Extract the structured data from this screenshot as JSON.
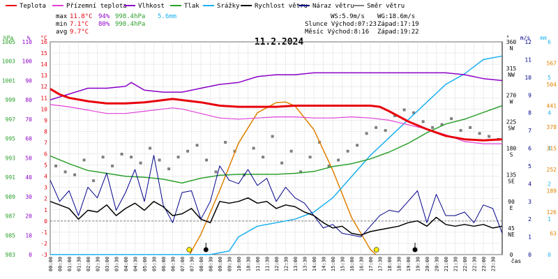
{
  "title": "11.2.2024",
  "legend": [
    {
      "key": "teplota",
      "label": "Teplota",
      "color": "#e8000b"
    },
    {
      "key": "prizemni",
      "label": "Přízemní teplota",
      "color": "#e040d8"
    },
    {
      "key": "vlhkost",
      "label": "Vlhkost",
      "color": "#8b00c8"
    },
    {
      "key": "tlak",
      "label": "Tlak",
      "color": "#2ca02c"
    },
    {
      "key": "srazky",
      "label": "Srážky",
      "color": "#1ab0f0"
    },
    {
      "key": "rychlost",
      "label": "Rychlost větru",
      "color": "#000000"
    },
    {
      "key": "naraz",
      "label": "Náraz větru",
      "color": "#00008b"
    },
    {
      "key": "smer",
      "label": "Směr větru",
      "color": "#7f7f7f"
    }
  ],
  "stats": {
    "max": {
      "label": "max",
      "temp": "11.8°C",
      "hum": "94%",
      "press": "998.4hPa",
      "rain": "5.6mm"
    },
    "min": {
      "label": "min",
      "temp": "7.1°C",
      "hum": "80%",
      "press": "990.4hPa"
    },
    "avg": {
      "label": "avg",
      "temp": "9.7°C"
    }
  },
  "info": {
    "ws": "WS:5.9m/s",
    "wg": "WG:18.6m/s",
    "sun": "Slunce Východ:07:23",
    "sun_set": "Západ:17:19",
    "moon": "Měsíc Východ:8:16",
    "moon_set": "Západ:19:22"
  },
  "axes": {
    "hpa_unit": "hPa",
    "pct_unit": "%",
    "c_unit": "°C",
    "deg_unit": "°",
    "ms_unit": "m/s",
    "mm_unit": "mm",
    "x_unit": "čas",
    "hpa_ticks": [
      "1005",
      "1003",
      "1001",
      "999",
      "997",
      "995",
      "993",
      "991",
      "989",
      "987",
      "985",
      "983"
    ],
    "pct_ticks": [
      "110",
      "100",
      "90",
      "80",
      "70",
      "60",
      "50",
      "40",
      "30",
      "20",
      "10",
      "0"
    ],
    "c_ticks": [
      "16",
      "15",
      "14",
      "13",
      "12",
      "11",
      "10",
      "9",
      "8",
      "7",
      "6",
      "5",
      "4",
      "3",
      "2",
      "1",
      "0",
      "-1",
      "-2",
      "-3"
    ],
    "dir_ticks": [
      "360 N",
      "315 NW",
      "270 W",
      "225 SW",
      "180 S",
      "135 SE",
      "90 E",
      "45 NE",
      "0"
    ],
    "ms_ticks": [
      "12",
      "11",
      "10",
      "9",
      "8",
      "7",
      "6",
      "5",
      "4",
      "3",
      "2",
      "1",
      "0"
    ],
    "wm_ticks": [
      "567",
      "504",
      "441",
      "378",
      "315",
      "252",
      "189",
      "126",
      "63"
    ],
    "mm_ticks": [
      "6",
      "5",
      "4",
      "3",
      "2",
      "1",
      "0"
    ],
    "time_ticks": [
      "00:00",
      "00:30",
      "01:00",
      "01:30",
      "02:00",
      "02:30",
      "03:00",
      "03:30",
      "04:00",
      "04:30",
      "05:00",
      "05:30",
      "06:00",
      "06:30",
      "07:00",
      "07:30",
      "08:00",
      "08:30",
      "09:00",
      "09:30",
      "10:00",
      "10:30",
      "11:00",
      "11:30",
      "12:00",
      "12:30",
      "13:00",
      "13:30",
      "14:00",
      "14:30",
      "15:00",
      "15:30",
      "16:00",
      "16:30",
      "17:00",
      "17:30",
      "18:00",
      "18:30",
      "19:00",
      "19:30",
      "20:00",
      "20:30",
      "21:00",
      "21:30",
      "22:00",
      "22:30",
      "23:00",
      "23:30"
    ]
  },
  "chart_data": {
    "type": "line",
    "title": "11.2.2024",
    "x_unit": "hours",
    "ylim_temp": [
      -3,
      16
    ],
    "ylim_hum": [
      0,
      110
    ],
    "ylim_press": [
      983,
      1005
    ],
    "ylim_wind": [
      0,
      12
    ],
    "ylim_rain": [
      0,
      6
    ],
    "ylim_dir": [
      0,
      360
    ],
    "ylim_solar": [
      0,
      630
    ],
    "series": [
      {
        "key": "teplota",
        "unit": "°C",
        "x": [
          0,
          0.5,
          1,
          2,
          3,
          4,
          5,
          6,
          6.5,
          7,
          8,
          9,
          10,
          11,
          12,
          13,
          14,
          15,
          16,
          17,
          17.5,
          18,
          19,
          20,
          21,
          22,
          23,
          24
        ],
        "values": [
          11.8,
          11.3,
          11.0,
          10.7,
          10.5,
          10.5,
          10.6,
          10.8,
          10.9,
          10.8,
          10.6,
          10.3,
          10.2,
          10.2,
          10.2,
          10.3,
          10.3,
          10.3,
          10.3,
          10.3,
          10.2,
          9.8,
          8.9,
          8.2,
          7.6,
          7.3,
          7.2,
          7.3
        ]
      },
      {
        "key": "prizemni",
        "unit": "°C",
        "x": [
          0,
          1,
          2,
          3,
          4,
          5,
          6,
          6.5,
          7,
          8,
          9,
          10,
          11,
          12,
          13,
          14,
          15,
          16,
          17,
          18,
          19,
          20,
          21,
          22,
          23,
          24
        ],
        "values": [
          10.4,
          10.2,
          9.9,
          9.6,
          9.6,
          9.8,
          10.0,
          10.1,
          10.0,
          9.6,
          9.2,
          9.1,
          9.2,
          9.3,
          9.3,
          9.2,
          9.2,
          9.3,
          9.2,
          9.0,
          8.6,
          8.2,
          7.7,
          7.1,
          6.9,
          6.9
        ]
      },
      {
        "key": "vlhkost",
        "unit": "%",
        "x": [
          0,
          1,
          2,
          3,
          4,
          4.3,
          5,
          6,
          7,
          8,
          9,
          10,
          11,
          12,
          13,
          14,
          15,
          16,
          17,
          18,
          19,
          20,
          21,
          22,
          23,
          24
        ],
        "values": [
          80,
          83,
          86,
          86,
          87,
          89,
          85,
          84,
          84,
          86,
          88,
          89,
          92,
          93,
          93,
          94,
          94,
          94,
          94,
          94,
          94,
          94,
          94,
          93,
          91,
          90
        ]
      },
      {
        "key": "tlak",
        "unit": "hPa",
        "x": [
          0,
          1,
          2,
          3,
          4,
          5,
          6,
          7,
          8,
          9,
          10,
          11,
          12,
          13,
          14,
          15,
          16,
          17,
          18,
          19,
          20,
          21,
          22,
          23,
          24
        ],
        "values": [
          993.2,
          992.4,
          991.7,
          991.4,
          991.1,
          991.0,
          990.8,
          990.4,
          990.9,
          991.2,
          991.3,
          991.3,
          991.3,
          991.4,
          991.6,
          992.1,
          992.4,
          992.9,
          993.6,
          994.5,
          995.6,
          996.5,
          997.0,
          997.7,
          998.4
        ]
      },
      {
        "key": "srazky",
        "unit": "mm",
        "x": [
          0,
          8.5,
          9.5,
          10,
          11,
          12,
          13,
          14,
          15,
          16,
          17,
          18,
          19,
          20,
          21,
          22,
          23,
          24
        ],
        "values": [
          0,
          0,
          0.1,
          0.5,
          0.8,
          0.9,
          1.0,
          1.2,
          1.6,
          2.2,
          2.8,
          3.3,
          3.8,
          4.3,
          4.8,
          5.1,
          5.5,
          5.6
        ]
      },
      {
        "key": "rychlost",
        "unit": "m/s",
        "x": [
          0,
          0.5,
          1,
          1.5,
          2,
          2.5,
          3,
          3.5,
          4,
          4.5,
          5,
          5.5,
          6,
          6.5,
          7,
          7.5,
          8,
          8.5,
          9,
          9.5,
          10,
          10.5,
          11,
          11.5,
          12,
          12.5,
          13,
          13.5,
          14,
          14.5,
          15,
          15.5,
          16,
          16.5,
          17,
          17.5,
          18,
          18.5,
          19,
          19.5,
          20,
          20.5,
          21,
          21.5,
          22,
          22.5,
          23,
          23.5,
          24
        ],
        "values": [
          3.0,
          2.8,
          2.6,
          2.0,
          2.5,
          2.4,
          2.8,
          2.2,
          2.6,
          2.9,
          2.5,
          3.0,
          2.7,
          2.2,
          2.3,
          2.6,
          2.0,
          1.8,
          3.0,
          2.9,
          3.0,
          3.2,
          2.9,
          3.0,
          2.6,
          2.8,
          2.7,
          2.4,
          2.2,
          1.8,
          1.5,
          1.6,
          1.2,
          1.1,
          1.3,
          1.4,
          1.5,
          1.6,
          1.8,
          1.9,
          1.6,
          2.1,
          1.7,
          1.6,
          1.7,
          1.6,
          1.7,
          1.5,
          1.6
        ]
      },
      {
        "key": "naraz",
        "unit": "m/s",
        "x": [
          0,
          0.5,
          1,
          1.5,
          2,
          2.5,
          3,
          3.5,
          4,
          4.5,
          5,
          5.5,
          6,
          6.5,
          7,
          7.5,
          8,
          8.5,
          9,
          9.5,
          10,
          10.5,
          11,
          11.5,
          12,
          12.5,
          13,
          13.5,
          14,
          14.5,
          15,
          15.5,
          16,
          16.5,
          17,
          17.5,
          18,
          18.5,
          19,
          19.5,
          20,
          20.5,
          21,
          21.5,
          22,
          22.5,
          23,
          23.5,
          24
        ],
        "values": [
          4.2,
          3.0,
          3.6,
          2.2,
          3.8,
          3.2,
          4.6,
          2.5,
          3.5,
          4.8,
          3.0,
          5.6,
          2.8,
          1.8,
          3.5,
          3.6,
          2.0,
          3.0,
          5.0,
          4.2,
          4.0,
          4.8,
          3.9,
          4.3,
          3.0,
          3.8,
          3.2,
          2.9,
          2.2,
          1.5,
          1.7,
          1.2,
          1.1,
          1.0,
          1.6,
          2.2,
          2.5,
          2.4,
          3.0,
          3.6,
          1.8,
          3.4,
          2.2,
          2.2,
          2.4,
          1.8,
          2.8,
          2.6,
          1.2
        ]
      },
      {
        "key": "solar",
        "unit": "W/m²",
        "x": [
          7.4,
          8,
          9,
          10,
          11,
          12,
          12.5,
          13,
          14,
          15,
          16,
          17,
          17.3
        ],
        "values": [
          0,
          60,
          190,
          330,
          420,
          450,
          452,
          440,
          370,
          250,
          110,
          15,
          0
        ]
      },
      {
        "key": "smer",
        "unit": "°",
        "type": "scatter",
        "x": [
          0.3,
          0.8,
          1.3,
          1.8,
          2.3,
          2.8,
          3.3,
          3.8,
          4.3,
          4.8,
          5.3,
          5.8,
          6.3,
          6.8,
          7.3,
          7.8,
          8.3,
          8.8,
          9.3,
          9.8,
          10.3,
          10.8,
          11.3,
          11.8,
          12.3,
          12.8,
          13.3,
          13.8,
          14.3,
          14.8,
          15.3,
          15.8,
          16.3,
          16.8,
          17.3,
          17.8,
          18.3,
          18.8,
          19.3,
          19.8,
          20.3,
          20.8,
          21.3,
          21.8,
          22.3,
          22.8,
          23.3,
          23.8
        ],
        "values": [
          150,
          140,
          135,
          160,
          125,
          165,
          150,
          170,
          165,
          155,
          180,
          160,
          145,
          165,
          175,
          185,
          160,
          140,
          190,
          175,
          135,
          180,
          165,
          200,
          155,
          175,
          140,
          165,
          190,
          150,
          160,
          175,
          185,
          205,
          215,
          210,
          235,
          245,
          240,
          225,
          215,
          220,
          230,
          210,
          215,
          205,
          200,
          195
        ]
      }
    ],
    "markers": [
      {
        "label": "sunrise",
        "x": 7.38
      },
      {
        "label": "sunset",
        "x": 17.32
      },
      {
        "label": "moonrise",
        "x": 8.27
      },
      {
        "label": "moonset",
        "x": 19.37
      }
    ]
  }
}
